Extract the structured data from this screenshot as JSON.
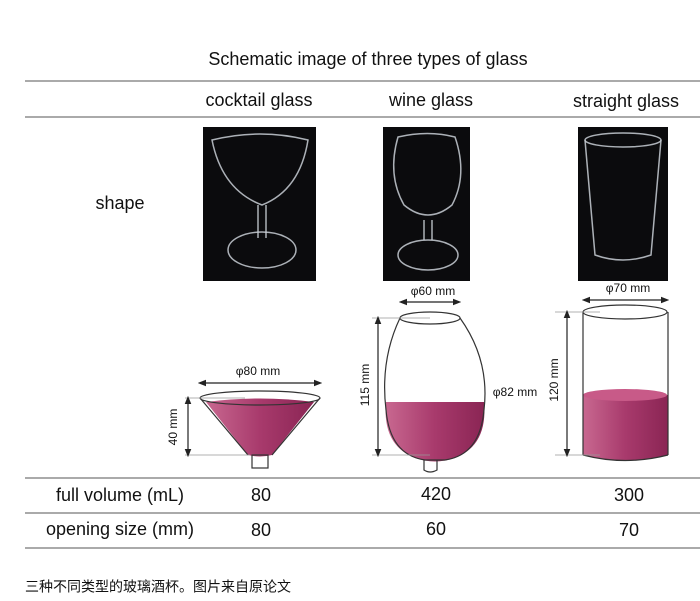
{
  "title": "Schematic image of three types of glass",
  "table": {
    "headers": [
      "cocktail glass",
      "wine glass",
      "straight glass"
    ],
    "shape_label": "shape",
    "rows": [
      {
        "label": "full volume (mL)",
        "values": [
          80,
          420,
          300
        ]
      },
      {
        "label": "opening size (mm)",
        "values": [
          80,
          60,
          70
        ]
      }
    ]
  },
  "diagram": {
    "cocktail": {
      "diameter": "φ80 mm",
      "height": "40 mm"
    },
    "wine": {
      "diameter": "φ60 mm",
      "height": "115 mm",
      "bowl": "φ82 mm"
    },
    "straight": {
      "diameter": "φ70 mm",
      "height": "120 mm"
    }
  },
  "caption": "三种不同类型的玻璃酒杯。图片来自原论文"
}
